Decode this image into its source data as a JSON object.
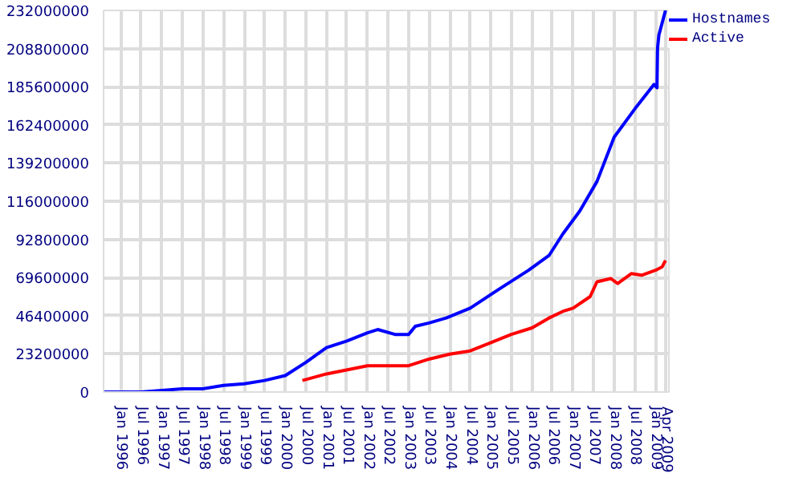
{
  "chart_data": {
    "type": "line",
    "xlim": [
      "1995-08",
      "2009-05"
    ],
    "ylim": [
      0,
      232000000
    ],
    "xticks": [
      {
        "value": "1996-01",
        "label": "Jan 1996"
      },
      {
        "value": "1996-07",
        "label": "Jul 1996"
      },
      {
        "value": "1997-01",
        "label": "Jan 1997"
      },
      {
        "value": "1997-07",
        "label": "Jul 1997"
      },
      {
        "value": "1998-01",
        "label": "Jan 1998"
      },
      {
        "value": "1998-07",
        "label": "Jul 1998"
      },
      {
        "value": "1999-01",
        "label": "Jan 1999"
      },
      {
        "value": "1999-07",
        "label": "Jul 1999"
      },
      {
        "value": "2000-01",
        "label": "Jan 2000"
      },
      {
        "value": "2000-07",
        "label": "Jul 2000"
      },
      {
        "value": "2001-01",
        "label": "Jan 2001"
      },
      {
        "value": "2001-07",
        "label": "Jul 2001"
      },
      {
        "value": "2002-01",
        "label": "Jan 2002"
      },
      {
        "value": "2002-07",
        "label": "Jul 2002"
      },
      {
        "value": "2003-01",
        "label": "Jan 2003"
      },
      {
        "value": "2003-07",
        "label": "Jul 2003"
      },
      {
        "value": "2004-01",
        "label": "Jan 2004"
      },
      {
        "value": "2004-07",
        "label": "Jul 2004"
      },
      {
        "value": "2005-01",
        "label": "Jan 2005"
      },
      {
        "value": "2005-07",
        "label": "Jul 2005"
      },
      {
        "value": "2006-01",
        "label": "Jan 2006"
      },
      {
        "value": "2006-07",
        "label": "Jul 2006"
      },
      {
        "value": "2007-01",
        "label": "Jan 2007"
      },
      {
        "value": "2007-07",
        "label": "Jul 2007"
      },
      {
        "value": "2008-01",
        "label": "Jan 2008"
      },
      {
        "value": "2008-07",
        "label": "Jul 2008"
      },
      {
        "value": "2009-01",
        "label": "Jan 2009"
      },
      {
        "value": "2009-04",
        "label": "Apr 2009"
      }
    ],
    "yticks": [
      0,
      23200000,
      46400000,
      69600000,
      92800000,
      116000000,
      139200000,
      162400000,
      185600000,
      208800000,
      232000000
    ],
    "grid": true,
    "legend": "top right",
    "line_style": "solid",
    "marker": "none",
    "series": [
      {
        "name": "Hostnames",
        "color": "#0000ff",
        "x": [
          "1995-08",
          "1996-01",
          "1996-07",
          "1997-01",
          "1997-07",
          "1998-01",
          "1998-07",
          "1999-01",
          "1999-07",
          "2000-01",
          "2000-07",
          "2001-01",
          "2001-07",
          "2002-01",
          "2002-04",
          "2002-09",
          "2003-01",
          "2003-03",
          "2003-07",
          "2003-12",
          "2004-07",
          "2005-03",
          "2005-12",
          "2006-06",
          "2006-10",
          "2007-03",
          "2007-08",
          "2008-01",
          "2008-07",
          "2008-12-20",
          "2009-01-15",
          "2009-01-20",
          "2009-02",
          "2009-04"
        ],
        "values": [
          0,
          0,
          0,
          1000000,
          2000000,
          2000000,
          4000000,
          5000000,
          7000000,
          10000000,
          18000000,
          27000000,
          31000000,
          36000000,
          38000000,
          35000000,
          35000000,
          40000000,
          42000000,
          45000000,
          51000000,
          62000000,
          74000000,
          83000000,
          96000000,
          110000000,
          128000000,
          155000000,
          172000000,
          187000000,
          185000000,
          209000000,
          217000000,
          232000000
        ]
      },
      {
        "name": "Active",
        "color": "#ff0000",
        "x": [
          "2000-06",
          "2001-01",
          "2002-01",
          "2002-07",
          "2003-01",
          "2003-07",
          "2004-01",
          "2004-07",
          "2005-01",
          "2005-07",
          "2006-01",
          "2006-06",
          "2006-10",
          "2007-01",
          "2007-06",
          "2007-08",
          "2007-12",
          "2008-02",
          "2008-06",
          "2008-09",
          "2009-01",
          "2009-03",
          "2009-04"
        ],
        "values": [
          7000000,
          11000000,
          16000000,
          16000000,
          16000000,
          20000000,
          23000000,
          25000000,
          30000000,
          35000000,
          39000000,
          45000000,
          49000000,
          51000000,
          58000000,
          67000000,
          69000000,
          66000000,
          72000000,
          71000000,
          74000000,
          76000000,
          80000000
        ]
      }
    ]
  }
}
